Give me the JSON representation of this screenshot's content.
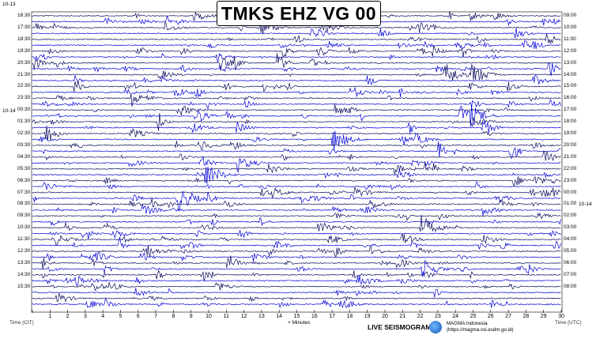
{
  "title": "TMKS EHZ VG 00",
  "date_left_top": "10-13",
  "date_left_mid": "10-14",
  "date_right_mid": "10-14",
  "left_times": [
    "16:30",
    "17:30",
    "18:30",
    "19:30",
    "20:30",
    "21:30",
    "22:30",
    "23:30",
    "00:30",
    "01:30",
    "02:30",
    "03:30",
    "04:30",
    "05:30",
    "06:30",
    "07:30",
    "08:30",
    "09:30",
    "10:30",
    "11:30",
    "12:30",
    "13:30",
    "14:30",
    "15:30"
  ],
  "right_times": [
    "09:00",
    "10:00",
    "11:00",
    "12:00",
    "13:00",
    "14:00",
    "15:00",
    "16:00",
    "17:00",
    "18:00",
    "19:00",
    "20:00",
    "21:00",
    "22:00",
    "23:00",
    "00:00",
    "01:00",
    "02:00",
    "03:00",
    "04:00",
    "05:00",
    "06:00",
    "07:00",
    "08:00"
  ],
  "minute_ticks": [
    "1",
    "2",
    "3",
    "4",
    "5",
    "6",
    "7",
    "8",
    "9",
    "10",
    "11",
    "12",
    "13",
    "14",
    "15",
    "16",
    "17",
    "18",
    "19",
    "20",
    "21",
    "22",
    "23",
    "24",
    "25",
    "26",
    "27",
    "28",
    "29",
    "30"
  ],
  "axis_left_label": "Time (CIT)",
  "axis_mid_label": "+ Minutes",
  "axis_right_label": "Time (UTC)",
  "footer_live": "LIVE SEISMOGRAM",
  "footer_org_name": "MAGMA Indonesia",
  "footer_org_url": "(https://magma.vsi.esdm.go.id)",
  "colors": {
    "trace_a": "#0000d8",
    "trace_b": "#0a0a5a"
  }
}
